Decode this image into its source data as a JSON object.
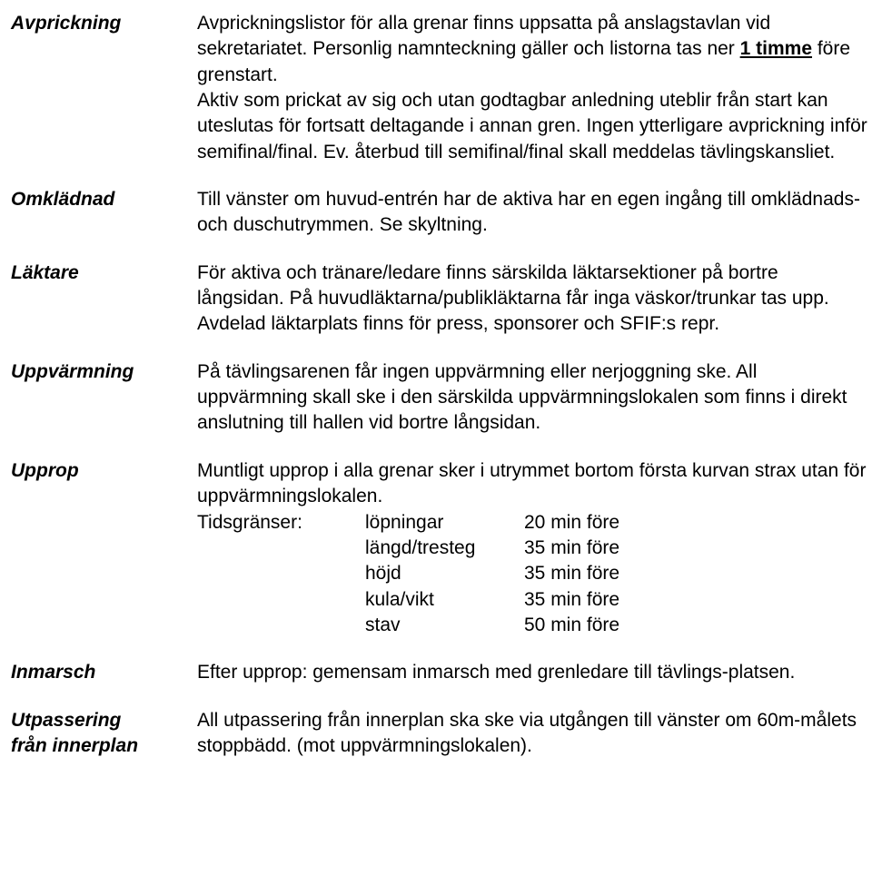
{
  "sections": {
    "avprickning": {
      "label": "Avprickning",
      "p1a": "Avprickningslistor för alla grenar finns uppsatta på anslagstavlan vid sekretariatet. Personlig namnteckning gäller och listorna tas ner ",
      "p1_underlined": "1 timme",
      "p1b": " före grenstart.",
      "p2": "Aktiv som prickat av sig och utan godtagbar anledning uteblir från start kan uteslutas för fortsatt deltagande i annan gren. Ingen ytterligare avprickning inför semifinal/final. Ev. återbud till semifinal/final skall meddelas tävlingskansliet."
    },
    "omkladnad": {
      "label": "Omklädnad",
      "p1": "Till vänster om huvud-entrén har de aktiva har en egen ingång till omklädnads- och duschutrymmen. Se skyltning."
    },
    "laktare": {
      "label": "Läktare",
      "p1": "För aktiva och tränare/ledare finns särskilda läktarsektioner på bortre långsidan. På huvudläktarna/publikläktarna får inga väskor/trunkar tas upp.",
      "p2": "Avdelad läktarplats finns för press, sponsorer och SFIF:s repr."
    },
    "uppvarmning": {
      "label": "Uppvärmning",
      "p1": "På  tävlingsarenen får ingen uppvärmning eller nerjoggning ske. All uppvärmning skall ske i den särskilda uppvärmningslokalen som finns i direkt anslutning till hallen vid bortre långsidan."
    },
    "upprop": {
      "label": "Upprop",
      "p1": "Muntligt upprop i alla grenar sker i utrymmet bortom första kurvan strax utan för uppvärmningslokalen.",
      "tg_label": "Tidsgränser:",
      "tg": [
        {
          "event": "löpningar",
          "time": "20 min före"
        },
        {
          "event": "längd/tresteg",
          "time": "35 min före"
        },
        {
          "event": "höjd",
          "time": "35 min före"
        },
        {
          "event": "kula/vikt",
          "time": "35 min före"
        },
        {
          "event": "stav",
          "time": "50 min före"
        }
      ]
    },
    "inmarsch": {
      "label": "Inmarsch",
      "p1": "Efter upprop: gemensam inmarsch med grenledare till tävlings-platsen."
    },
    "utpassering": {
      "label_line1": "Utpassering",
      "label_line2": "från innerplan",
      "p1": "All utpassering från innerplan ska ske via utgången till vänster om 60m-målets stoppbädd. (mot uppvärmningslokalen)."
    }
  }
}
